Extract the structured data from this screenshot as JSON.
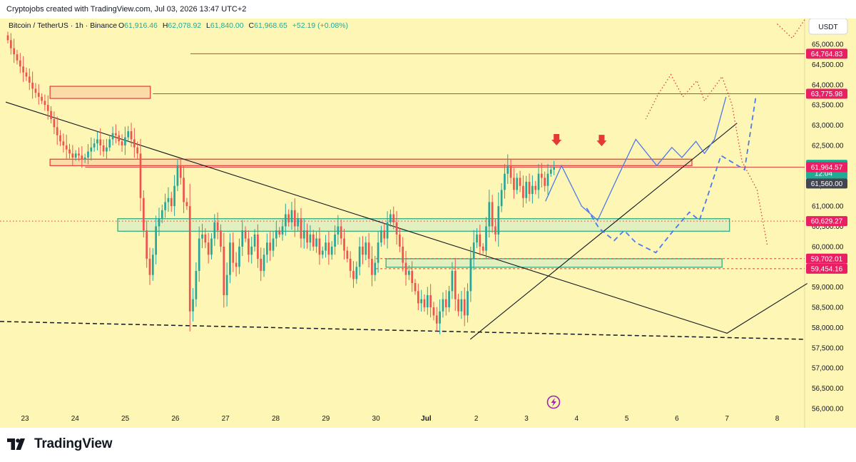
{
  "header": {
    "credit": "Cryptojobs created with TradingView.com, Jul 03, 2026 13:47 UTC+2"
  },
  "legend": {
    "symbol": "Bitcoin / TetherUS · 1h · Binance",
    "o_label": "O",
    "o": "61,916.46",
    "h_label": "H",
    "h": "62,078.92",
    "l_label": "L",
    "l": "61,840.00",
    "c_label": "C",
    "c": "61,968.65",
    "change": "+52.19 (+0.08%)"
  },
  "currency_button": "USDT",
  "brand": {
    "name": "TradingView"
  },
  "colors": {
    "background": "#fdf6b5",
    "up": "#26a69a",
    "down": "#ef5350",
    "resistance_fill": "#fad7a6",
    "resistance_stroke": "#e53935",
    "support_fill": "#dcefbf",
    "support_stroke": "#2aa876",
    "projection": "#4e79ee",
    "trend": "#131722",
    "price_tag_red": "#e91e63",
    "price_tag_green": "#22ab94",
    "price_tag_gray": "#434651"
  },
  "chart_data": {
    "type": "candlestick",
    "symbol": "BTCUSDT",
    "interval": "1h",
    "exchange": "Binance",
    "y_range": [
      56000,
      65500
    ],
    "y_ticks": [
      "65,000.00",
      "64,500.00",
      "64,000.00",
      "63,500.00",
      "63,000.00",
      "62,500.00",
      "62,000.00",
      "61,500.00",
      "61,000.00",
      "60,500.00",
      "60,000.00",
      "59,500.00",
      "59,000.00",
      "58,500.00",
      "58,000.00",
      "57,500.00",
      "57,000.00",
      "56,500.00",
      "56,000.00"
    ],
    "x_labels": [
      "23",
      "24",
      "25",
      "26",
      "27",
      "28",
      "29",
      "30",
      "Jul",
      "2",
      "3",
      "4",
      "5",
      "6",
      "7",
      "8"
    ],
    "price_tags": [
      {
        "text": "64,764.83",
        "value": 64764.83,
        "style": "red"
      },
      {
        "text": "63,775.98",
        "value": 63775.98,
        "style": "red"
      },
      {
        "text": "61,968.65",
        "countdown": "12:04",
        "value": 61968.65,
        "style": "green"
      },
      {
        "text": "61,964.57",
        "value": 61964.57,
        "style": "red"
      },
      {
        "text": "61,560.00",
        "value": 61560.0,
        "style": "gray"
      },
      {
        "text": "60,629.27",
        "value": 60629.27,
        "style": "red"
      },
      {
        "text": "59,702.01",
        "value": 59702.01,
        "style": "red"
      },
      {
        "text": "59,454.16",
        "value": 59454.16,
        "style": "red"
      }
    ],
    "horizontal_levels": [
      64764.83,
      63775.98,
      61964.57,
      60629.27,
      59702.01,
      59454.16
    ],
    "zones": [
      {
        "kind": "resistance",
        "from_day": 23.5,
        "to_day": 25.5,
        "low": 63660,
        "high": 63960
      },
      {
        "kind": "resistance",
        "from_day": 23.5,
        "to_day": 36.3,
        "low": 62000,
        "high": 62160
      },
      {
        "kind": "support",
        "from_day": 24.85,
        "to_day": 37.05,
        "low": 60380,
        "high": 60690
      },
      {
        "kind": "support",
        "from_day": 30.2,
        "to_day": 36.9,
        "low": 59490,
        "high": 59700
      }
    ],
    "candles_close": [
      65100,
      64900,
      64750,
      64600,
      64450,
      64300,
      64200,
      64050,
      63900,
      63800,
      63700,
      63600,
      63500,
      63350,
      63150,
      62950,
      62750,
      62600,
      62500,
      62400,
      62300,
      62200,
      62300,
      62250,
      62150,
      62200,
      62350,
      62450,
      62550,
      62650,
      62500,
      62350,
      62450,
      62650,
      62800,
      62750,
      62600,
      62500,
      62700,
      62850,
      62650,
      62450,
      62300,
      61200,
      60400,
      59700,
      59300,
      59800,
      60500,
      60700,
      60900,
      61100,
      61200,
      61000,
      61500,
      62000,
      61700,
      61100,
      61000,
      58400,
      58700,
      59400,
      60200,
      60300,
      60100,
      59800,
      60200,
      60600,
      60400,
      60000,
      58800,
      59300,
      60100,
      59600,
      59500,
      60000,
      60400,
      60200,
      59800,
      60000,
      60300,
      59700,
      59400,
      59800,
      60100,
      59900,
      60200,
      60400,
      60300,
      60500,
      60800,
      60600,
      60900,
      60500,
      60700,
      60200,
      60400,
      60100,
      60300,
      60000,
      60200,
      59800,
      59900,
      60100,
      59800,
      60000,
      60300,
      60500,
      60200,
      59900,
      59700,
      59400,
      59200,
      59500,
      60000,
      59800,
      60100,
      59700,
      59300,
      59600,
      60100,
      60400,
      60200,
      60600,
      60800,
      60600,
      60300,
      60000,
      59600,
      59300,
      59400,
      59100,
      58900,
      58600,
      58700,
      58500,
      58800,
      58500,
      58300,
      58100,
      58400,
      58700,
      58500,
      58900,
      59400,
      58700,
      58400,
      58700,
      58300,
      58900,
      59700,
      60100,
      60300,
      60000,
      59900,
      60500,
      61100,
      60500,
      60300,
      61000,
      61400,
      61800,
      62000,
      61700,
      61400,
      61700,
      61500,
      61200,
      61600,
      61300,
      61500,
      61400,
      61800,
      61700,
      61500,
      61800,
      61900,
      61968
    ]
  }
}
